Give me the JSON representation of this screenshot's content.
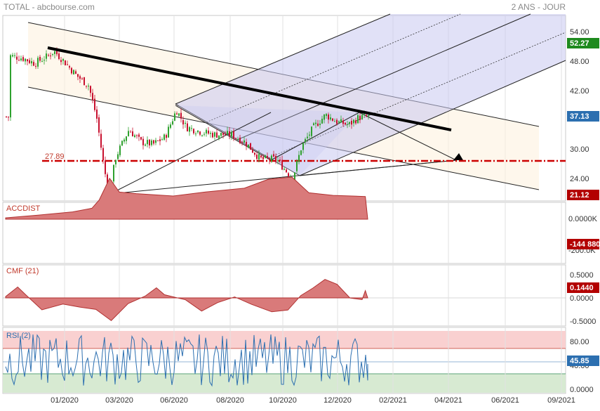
{
  "header": {
    "title": "TOTAL - abcbourse.com",
    "period": "2 ANS - JOUR"
  },
  "colors": {
    "up": "#2ea12e",
    "down": "#c8102e",
    "fill_red": "#d97a7a",
    "line_red": "#b03030",
    "rsi_line": "#2c6fb0",
    "rsi_high": "#f9d0d0",
    "rsi_low": "#d7ead2",
    "badge_green": "#1e8a1e",
    "badge_blue": "#2c6fb0",
    "badge_red": "#b30000"
  },
  "x_ticks": [
    "01/2020",
    "03/2020",
    "06/2020",
    "08/2020",
    "10/2020",
    "12/2020",
    "02/2021",
    "04/2021",
    "06/2021",
    "09/2021"
  ],
  "price_panel": {
    "ticks": [
      "54.00",
      "48.00",
      "42.00",
      "30.00",
      "24.00"
    ],
    "badges": {
      "top": "52.27",
      "last": "37.13",
      "bottom": "21.12"
    },
    "support_label": "27.89"
  },
  "accdist": {
    "label": "ACCDIST",
    "ticks": [
      "0.0000K",
      "-200.0K"
    ],
    "badge": "-144 880"
  },
  "cmf": {
    "label": "CMF (21)",
    "ticks": [
      "0.5000",
      "0.0000",
      "-0.5000"
    ],
    "badge": "0.1440"
  },
  "rsi": {
    "label": "RSI (2)",
    "ticks": [
      "80.00",
      "40.00",
      "0.0000"
    ],
    "badge": "45.85"
  },
  "chart_data": {
    "type": "candlestick",
    "title": "TOTAL",
    "subtitle": "2 ANS - JOUR",
    "x_range": [
      "2019-11",
      "2021-09"
    ],
    "price_ylim": [
      19,
      57
    ],
    "price_series": [
      {
        "date": "2019-11-15",
        "close": 49.5
      },
      {
        "date": "2019-12-01",
        "close": 49.0
      },
      {
        "date": "2019-12-15",
        "close": 48.0
      },
      {
        "date": "2020-01-01",
        "close": 49.5
      },
      {
        "date": "2020-01-08",
        "close": 50.5
      },
      {
        "date": "2020-01-20",
        "close": 48.5
      },
      {
        "date": "2020-02-05",
        "close": 45.5
      },
      {
        "date": "2020-02-20",
        "close": 43.5
      },
      {
        "date": "2020-03-01",
        "close": 37.0
      },
      {
        "date": "2020-03-10",
        "close": 27.0
      },
      {
        "date": "2020-03-16",
        "close": 21.5
      },
      {
        "date": "2020-03-25",
        "close": 29.0
      },
      {
        "date": "2020-04-10",
        "close": 34.5
      },
      {
        "date": "2020-04-25",
        "close": 32.0
      },
      {
        "date": "2020-05-10",
        "close": 31.5
      },
      {
        "date": "2020-05-25",
        "close": 33.0
      },
      {
        "date": "2020-06-08",
        "close": 38.5
      },
      {
        "date": "2020-06-20",
        "close": 35.0
      },
      {
        "date": "2020-07-10",
        "close": 34.0
      },
      {
        "date": "2020-07-25",
        "close": 33.5
      },
      {
        "date": "2020-08-15",
        "close": 33.5
      },
      {
        "date": "2020-09-01",
        "close": 32.0
      },
      {
        "date": "2020-09-20",
        "close": 28.5
      },
      {
        "date": "2020-10-10",
        "close": 28.5
      },
      {
        "date": "2020-10-30",
        "close": 24.5
      },
      {
        "date": "2020-11-10",
        "close": 31.0
      },
      {
        "date": "2020-11-25",
        "close": 35.0
      },
      {
        "date": "2020-12-10",
        "close": 37.5
      },
      {
        "date": "2020-12-25",
        "close": 36.0
      },
      {
        "date": "2021-01-08",
        "close": 35.5
      },
      {
        "date": "2021-01-20",
        "close": 37.0
      },
      {
        "date": "2021-01-29",
        "close": 37.13
      }
    ],
    "support_level": 27.89,
    "trendline_resistance": [
      {
        "date": "2020-01-08",
        "price": 50.5
      },
      {
        "date": "2021-04-10",
        "price": 35.0
      }
    ],
    "accdist_last": -144880,
    "cmf_last": 0.144,
    "rsi_last": 45.85,
    "rsi_levels": [
      80,
      30
    ]
  }
}
